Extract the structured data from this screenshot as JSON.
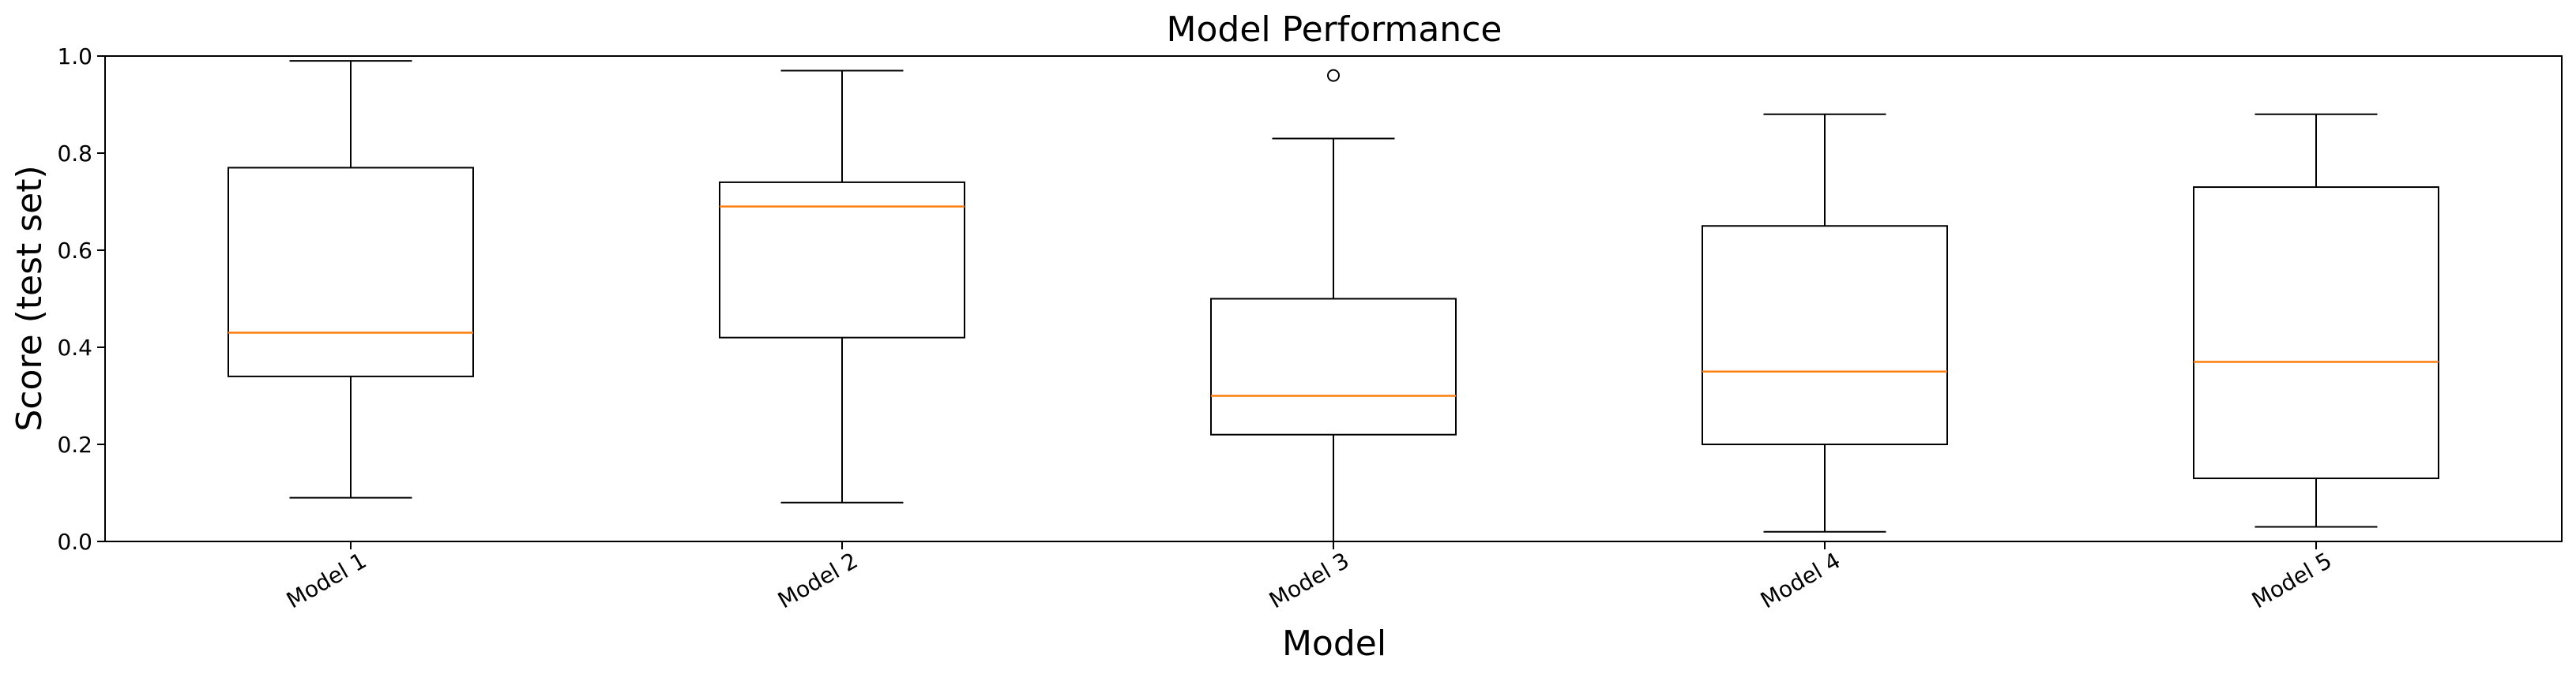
{
  "chart_data": {
    "type": "box",
    "title": "Model Performance",
    "xlabel": "Model",
    "ylabel": "Score (test set)",
    "ylim": [
      0.0,
      1.0
    ],
    "yticks": [
      "0.0",
      "0.2",
      "0.4",
      "0.6",
      "0.8",
      "1.0"
    ],
    "grid": false,
    "categories": [
      "Model 1",
      "Model 2",
      "Model 3",
      "Model 4",
      "Model 5"
    ],
    "boxes": [
      {
        "name": "Model 1",
        "whisker_low": 0.09,
        "q1": 0.34,
        "median": 0.43,
        "q3": 0.77,
        "whisker_high": 0.99,
        "outliers": []
      },
      {
        "name": "Model 2",
        "whisker_low": 0.08,
        "q1": 0.42,
        "median": 0.69,
        "q3": 0.74,
        "whisker_high": 0.97,
        "outliers": []
      },
      {
        "name": "Model 3",
        "whisker_low": 0.0,
        "q1": 0.22,
        "median": 0.3,
        "q3": 0.5,
        "whisker_high": 0.83,
        "outliers": [
          0.96
        ]
      },
      {
        "name": "Model 4",
        "whisker_low": 0.02,
        "q1": 0.2,
        "median": 0.35,
        "q3": 0.65,
        "whisker_high": 0.88,
        "outliers": []
      },
      {
        "name": "Model 5",
        "whisker_low": 0.03,
        "q1": 0.13,
        "median": 0.37,
        "q3": 0.73,
        "whisker_high": 0.88,
        "outliers": []
      }
    ],
    "colors": {
      "box": "#000000",
      "median": "#ff7f0e",
      "axes": "#000000",
      "background": "#ffffff"
    }
  }
}
